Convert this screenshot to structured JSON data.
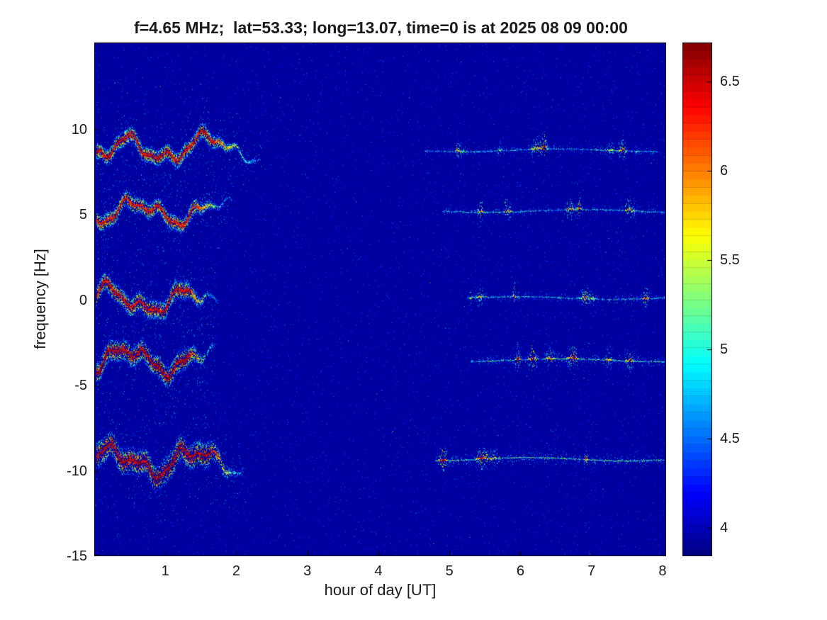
{
  "title": "f=4.65 MHz;  lat=53.33; long=13.07, time=0 is at 2025 08 09 00:00",
  "chart_data": {
    "type": "heatmap",
    "title": "f=4.65 MHz;  lat=53.33; long=13.07, time=0 is at 2025 08 09 00:00",
    "xlabel": "hour of day [UT]",
    "ylabel": "frequency [Hz]",
    "xlim": [
      0,
      8.05
    ],
    "ylim": [
      -15,
      15.1
    ],
    "x_ticks": [
      1,
      2,
      3,
      4,
      5,
      6,
      7,
      8
    ],
    "y_ticks": [
      10,
      5,
      0,
      -5,
      -10,
      -15
    ],
    "grid": false,
    "colormap": "jet",
    "background_value": 3.93,
    "colorbar": {
      "min": 3.84,
      "max": 6.72,
      "ticks": [
        4,
        4.5,
        5,
        5.5,
        6,
        6.5
      ],
      "position": "right"
    },
    "traces": [
      {
        "center_hz": 8.8,
        "segments": [
          {
            "kind": "strong",
            "start": 0.03,
            "end": 2.35,
            "fade_from": 1.6,
            "peak": 6.6,
            "spread": 0.38,
            "wiggle": 0.5
          },
          {
            "kind": "faint",
            "start": 4.65,
            "end": 7.95,
            "peak": 5.3,
            "spread": 0.1,
            "wiggle": 0.08
          }
        ]
      },
      {
        "center_hz": 5.25,
        "segments": [
          {
            "kind": "strong",
            "start": 0.03,
            "end": 1.95,
            "fade_from": 1.4,
            "peak": 6.5,
            "spread": 0.4,
            "wiggle": 0.45
          },
          {
            "kind": "faint",
            "start": 4.9,
            "end": 8.03,
            "peak": 5.3,
            "spread": 0.1,
            "wiggle": 0.08
          }
        ]
      },
      {
        "center_hz": 0.15,
        "segments": [
          {
            "kind": "strong",
            "start": 0.03,
            "end": 1.75,
            "fade_from": 1.3,
            "peak": 6.6,
            "spread": 0.45,
            "wiggle": 0.5
          },
          {
            "kind": "faint",
            "start": 5.25,
            "end": 8.03,
            "peak": 5.4,
            "spread": 0.1,
            "wiggle": 0.08
          }
        ]
      },
      {
        "center_hz": -3.5,
        "segments": [
          {
            "kind": "strong",
            "start": 0.03,
            "end": 1.7,
            "fade_from": 1.3,
            "peak": 6.7,
            "spread": 0.5,
            "wiggle": 0.5
          },
          {
            "kind": "faint",
            "start": 5.3,
            "end": 8.03,
            "peak": 5.5,
            "spread": 0.12,
            "wiggle": 0.08
          }
        ]
      },
      {
        "center_hz": -9.3,
        "segments": [
          {
            "kind": "strong",
            "start": 0.03,
            "end": 2.1,
            "fade_from": 1.6,
            "peak": 6.7,
            "spread": 0.62,
            "wiggle": 0.55
          },
          {
            "kind": "faint",
            "start": 4.8,
            "end": 8.03,
            "peak": 5.6,
            "spread": 0.12,
            "wiggle": 0.1
          }
        ]
      }
    ]
  }
}
